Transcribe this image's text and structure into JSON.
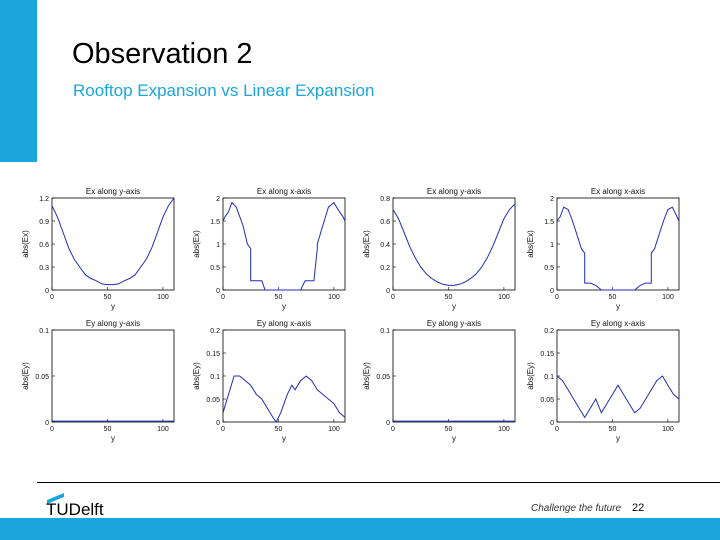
{
  "slide": {
    "title": "Observation 2",
    "subtitle": "Rooftop Expansion vs Linear Expansion"
  },
  "footer": {
    "logo_text": "TUDelft",
    "tagline": "Challenge the future",
    "page_number": "22"
  },
  "colors": {
    "accent": "#1aa5dc",
    "series": "#1f2fb5"
  },
  "chart_data": [
    {
      "type": "line",
      "title": "Ex along y-axis",
      "xlabel": "y",
      "ylabel": "abs(Ex)",
      "xlim": [
        0,
        110
      ],
      "ylim": [
        0,
        1.2
      ],
      "xticks": [
        "0",
        "50",
        "100"
      ],
      "yticks": [
        "0",
        "0.3",
        "0.6",
        "0.9",
        "1.2"
      ],
      "x": [
        0,
        5,
        10,
        15,
        20,
        25,
        30,
        35,
        40,
        45,
        50,
        55,
        60,
        65,
        70,
        75,
        80,
        85,
        90,
        95,
        100,
        105,
        110
      ],
      "y": [
        1.1,
        0.95,
        0.75,
        0.55,
        0.4,
        0.3,
        0.2,
        0.15,
        0.12,
        0.08,
        0.07,
        0.07,
        0.08,
        0.12,
        0.15,
        0.2,
        0.3,
        0.4,
        0.55,
        0.75,
        0.95,
        1.1,
        1.2
      ]
    },
    {
      "type": "line",
      "title": "Ex along x-axis",
      "xlabel": "y",
      "ylabel": "abs(Ex)",
      "xlim": [
        0,
        110
      ],
      "ylim": [
        0,
        2
      ],
      "xticks": [
        "0",
        "50",
        "100"
      ],
      "yticks": [
        "0",
        "0.5",
        "1",
        "1.5",
        "2"
      ],
      "x": [
        0,
        2,
        5,
        8,
        12,
        18,
        22,
        25,
        25,
        28,
        32,
        35,
        38,
        42,
        45,
        48,
        52,
        55,
        58,
        62,
        65,
        70,
        74,
        78,
        82,
        85,
        85,
        90,
        95,
        100,
        105,
        108,
        110
      ],
      "y": [
        1.5,
        1.6,
        1.7,
        1.9,
        1.8,
        1.4,
        1.0,
        0.9,
        0.2,
        0.2,
        0.2,
        0.2,
        0.0,
        0.0,
        0.0,
        0.0,
        0.0,
        0.0,
        0.0,
        0.0,
        0.0,
        0.0,
        0.2,
        0.2,
        0.2,
        0.9,
        1.0,
        1.4,
        1.8,
        1.9,
        1.7,
        1.6,
        1.5
      ]
    },
    {
      "type": "line",
      "title": "Ex along y-axis",
      "xlabel": "y",
      "ylabel": "abs(Ex)",
      "xlim": [
        0,
        110
      ],
      "ylim": [
        0,
        0.8
      ],
      "xticks": [
        "0",
        "50",
        "100"
      ],
      "yticks": [
        "0",
        "0.2",
        "0.4",
        "0.6",
        "0.8"
      ],
      "x": [
        0,
        5,
        10,
        15,
        20,
        25,
        30,
        35,
        40,
        45,
        50,
        55,
        60,
        65,
        70,
        75,
        80,
        85,
        90,
        95,
        100,
        105,
        110
      ],
      "y": [
        0.7,
        0.62,
        0.5,
        0.38,
        0.28,
        0.2,
        0.14,
        0.1,
        0.07,
        0.05,
        0.04,
        0.04,
        0.05,
        0.07,
        0.1,
        0.14,
        0.2,
        0.28,
        0.38,
        0.5,
        0.62,
        0.7,
        0.75
      ]
    },
    {
      "type": "line",
      "title": "Ex along x-axis",
      "xlabel": "y",
      "ylabel": "abs(Ex)",
      "xlim": [
        0,
        110
      ],
      "ylim": [
        0,
        2
      ],
      "xticks": [
        "0",
        "50",
        "100"
      ],
      "yticks": [
        "0",
        "0.5",
        "1",
        "1.5",
        "2"
      ],
      "x": [
        0,
        3,
        6,
        10,
        14,
        18,
        22,
        25,
        25,
        30,
        35,
        40,
        45,
        50,
        55,
        60,
        65,
        70,
        75,
        80,
        85,
        85,
        88,
        92,
        96,
        100,
        104,
        108,
        110
      ],
      "y": [
        1.5,
        1.6,
        1.8,
        1.75,
        1.5,
        1.2,
        0.9,
        0.8,
        0.15,
        0.15,
        0.1,
        0.0,
        0.0,
        0.0,
        0.0,
        0.0,
        0.0,
        0.0,
        0.1,
        0.15,
        0.15,
        0.8,
        0.9,
        1.2,
        1.5,
        1.75,
        1.8,
        1.6,
        1.5
      ]
    },
    {
      "type": "line",
      "title": "Ey along y-axis",
      "xlabel": "y",
      "ylabel": "abs(Ey)",
      "xlim": [
        0,
        110
      ],
      "ylim": [
        0,
        0.1
      ],
      "xticks": [
        "0",
        "50",
        "100"
      ],
      "yticks": [
        "0",
        "0.05",
        "0.1"
      ],
      "x": [
        0,
        110
      ],
      "y": [
        0.001,
        0.001
      ]
    },
    {
      "type": "line",
      "title": "Ey along x-axis",
      "xlabel": "y",
      "ylabel": "abs(Ey)",
      "xlim": [
        0,
        110
      ],
      "ylim": [
        0,
        0.2
      ],
      "xticks": [
        "0",
        "50",
        "100"
      ],
      "yticks": [
        "0",
        "0.05",
        "0.1",
        "0.15",
        "0.2"
      ],
      "x": [
        0,
        5,
        10,
        15,
        20,
        25,
        30,
        35,
        40,
        45,
        48,
        52,
        55,
        58,
        62,
        65,
        70,
        75,
        80,
        85,
        90,
        95,
        100,
        105,
        110
      ],
      "y": [
        0.02,
        0.06,
        0.1,
        0.1,
        0.09,
        0.08,
        0.06,
        0.05,
        0.03,
        0.01,
        0.0,
        0.02,
        0.04,
        0.06,
        0.08,
        0.07,
        0.09,
        0.1,
        0.09,
        0.07,
        0.06,
        0.05,
        0.04,
        0.02,
        0.01
      ]
    },
    {
      "type": "line",
      "title": "Ey along y-axis",
      "xlabel": "y",
      "ylabel": "abs(Ey)",
      "xlim": [
        0,
        110
      ],
      "ylim": [
        0,
        0.1
      ],
      "xticks": [
        "0",
        "50",
        "100"
      ],
      "yticks": [
        "0",
        "0.05",
        "0.1"
      ],
      "x": [
        0,
        110
      ],
      "y": [
        0.001,
        0.001
      ]
    },
    {
      "type": "line",
      "title": "Ey along x-axis",
      "xlabel": "y",
      "ylabel": "abs(Ey)",
      "xlim": [
        0,
        110
      ],
      "ylim": [
        0,
        0.2
      ],
      "xticks": [
        "0",
        "50",
        "100"
      ],
      "yticks": [
        "0",
        "0.05",
        "0.1",
        "0.15",
        "0.2"
      ],
      "x": [
        0,
        5,
        10,
        15,
        20,
        25,
        30,
        35,
        40,
        45,
        50,
        55,
        60,
        65,
        70,
        75,
        80,
        85,
        90,
        95,
        100,
        105,
        110
      ],
      "y": [
        0.1,
        0.09,
        0.07,
        0.05,
        0.03,
        0.01,
        0.03,
        0.05,
        0.02,
        0.04,
        0.06,
        0.08,
        0.06,
        0.04,
        0.02,
        0.03,
        0.05,
        0.07,
        0.09,
        0.1,
        0.08,
        0.06,
        0.05
      ]
    }
  ]
}
